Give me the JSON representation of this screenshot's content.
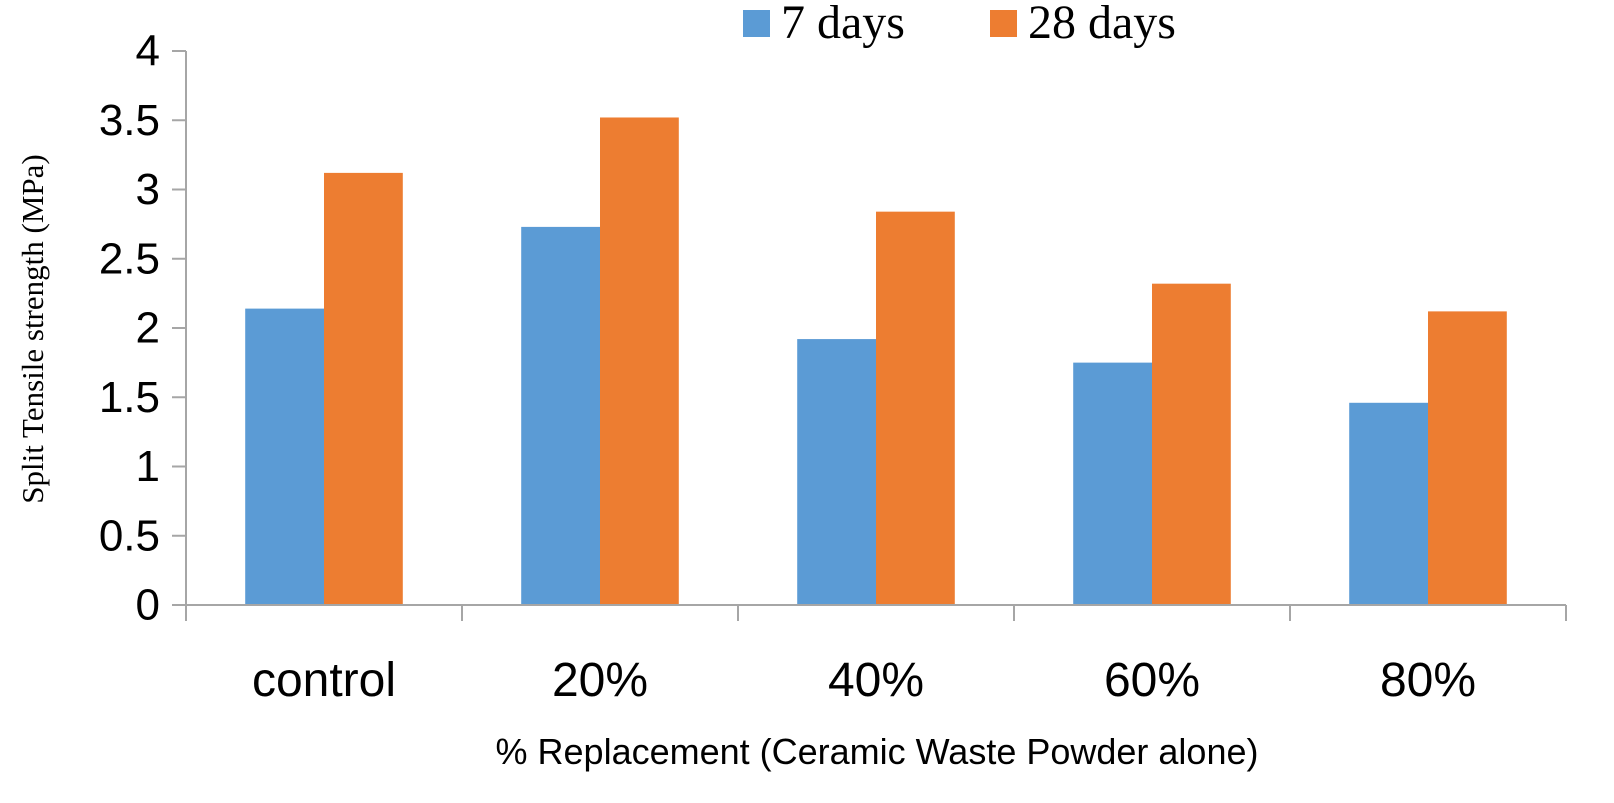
{
  "chart_data": {
    "type": "bar",
    "categories": [
      "control",
      "20%",
      "40%",
      "60%",
      "80%"
    ],
    "series": [
      {
        "name": "7 days",
        "color": "#5B9BD5",
        "values": [
          2.14,
          2.73,
          1.92,
          1.75,
          1.46
        ]
      },
      {
        "name": "28 days",
        "color": "#ED7D31",
        "values": [
          3.12,
          3.52,
          2.84,
          2.32,
          2.12
        ]
      }
    ],
    "title": "",
    "xlabel": "% Replacement (Ceramic Waste Powder alone)",
    "ylabel": "Split Tensile strength (MPa)",
    "ylim": [
      0,
      4
    ],
    "yticks": [
      "0",
      "0.5",
      "1",
      "1.5",
      "2",
      "2.5",
      "3",
      "3.5",
      "4"
    ],
    "grid": false,
    "legend_position": "top"
  }
}
